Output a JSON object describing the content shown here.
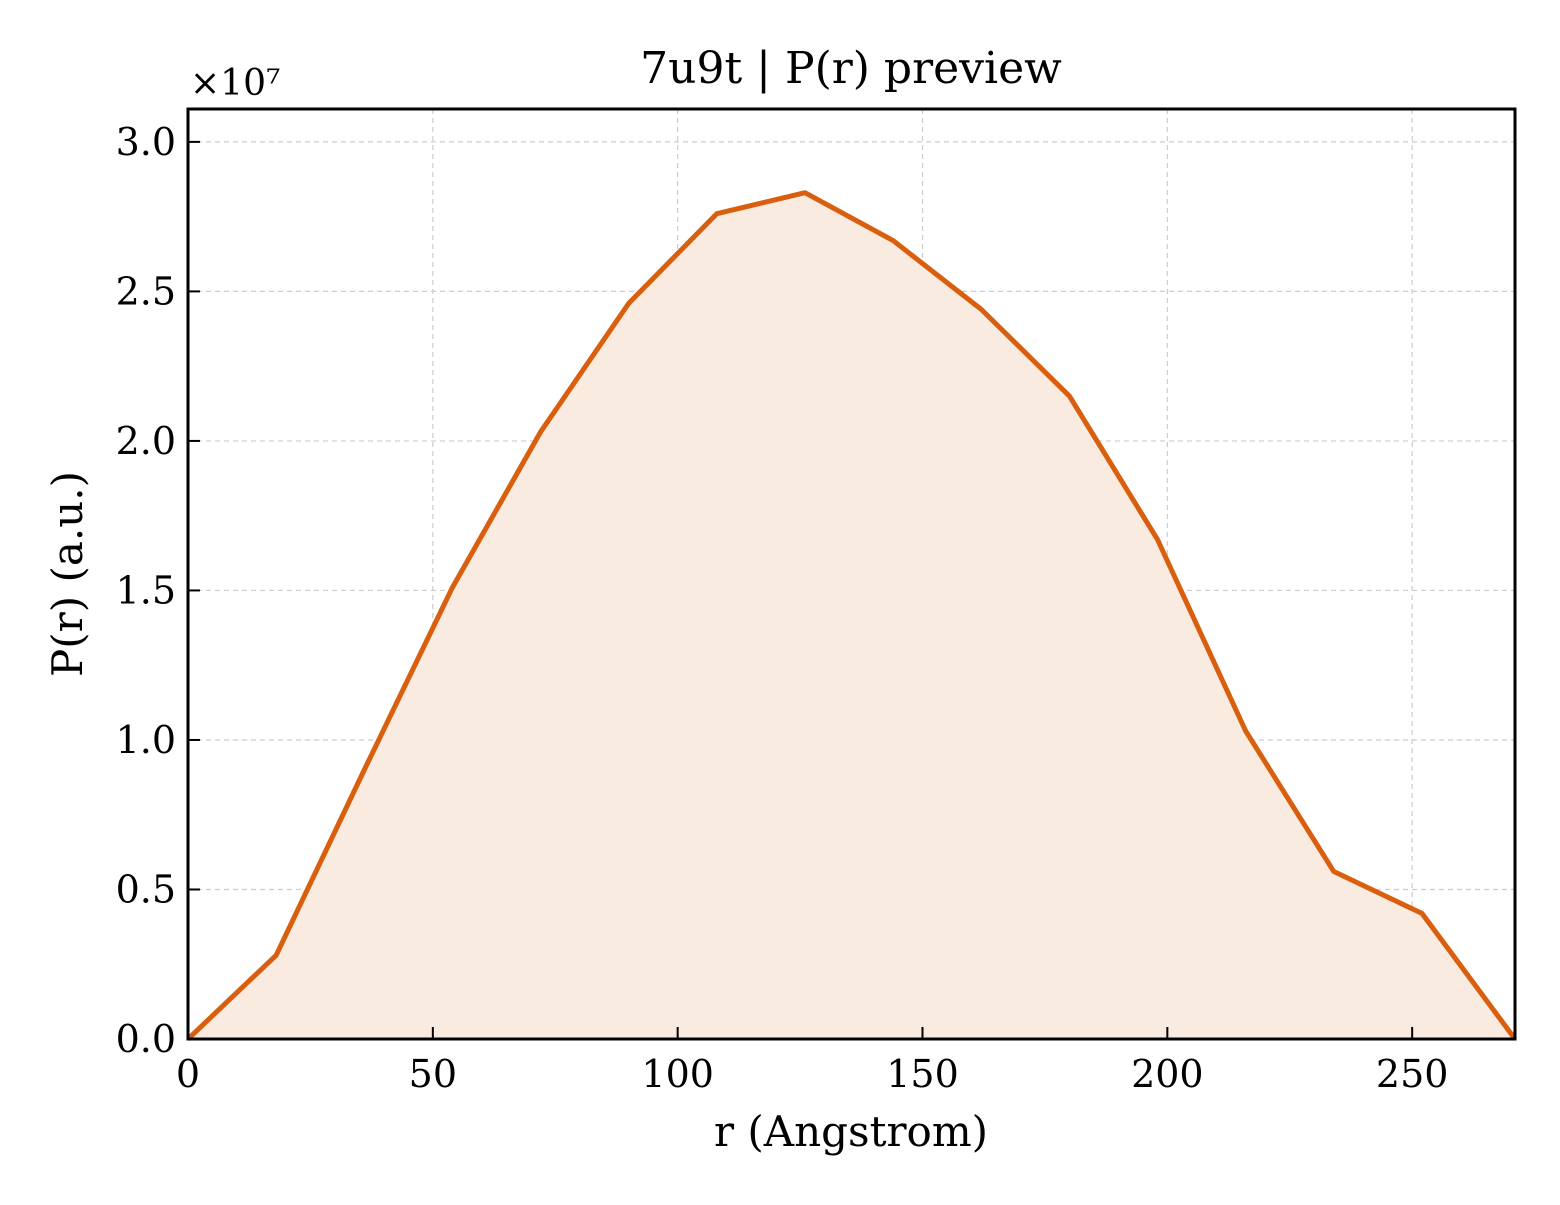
{
  "chart_data": {
    "type": "area",
    "title": "7u9t | P(r) preview",
    "xlabel": "r (Angstrom)",
    "ylabel": "P(r) (a.u.)",
    "y_scale_label": "×10⁷",
    "xlim": [
      0,
      271
    ],
    "ylim": [
      0,
      31100000
    ],
    "xticks": [
      0,
      50,
      100,
      150,
      200,
      250
    ],
    "xtick_labels": [
      "0",
      "50",
      "100",
      "150",
      "200",
      "250"
    ],
    "yticks": [
      0,
      5000000,
      10000000,
      15000000,
      20000000,
      25000000,
      30000000
    ],
    "ytick_labels": [
      "0.0",
      "0.5",
      "1.0",
      "1.5",
      "2.0",
      "2.5",
      "3.0"
    ],
    "grid": true,
    "series": [
      {
        "color": "#d95f0e",
        "fill_color": "#f9ebe0",
        "x": [
          0,
          18,
          36,
          54,
          72,
          90,
          108,
          126,
          144,
          162,
          180,
          198,
          216,
          234,
          252,
          271
        ],
        "y": [
          0,
          2800000,
          9000000,
          15100000,
          20300000,
          24600000,
          27600000,
          28300000,
          26700000,
          24400000,
          21500000,
          16700000,
          10300000,
          5600000,
          4200000,
          0
        ]
      }
    ]
  }
}
